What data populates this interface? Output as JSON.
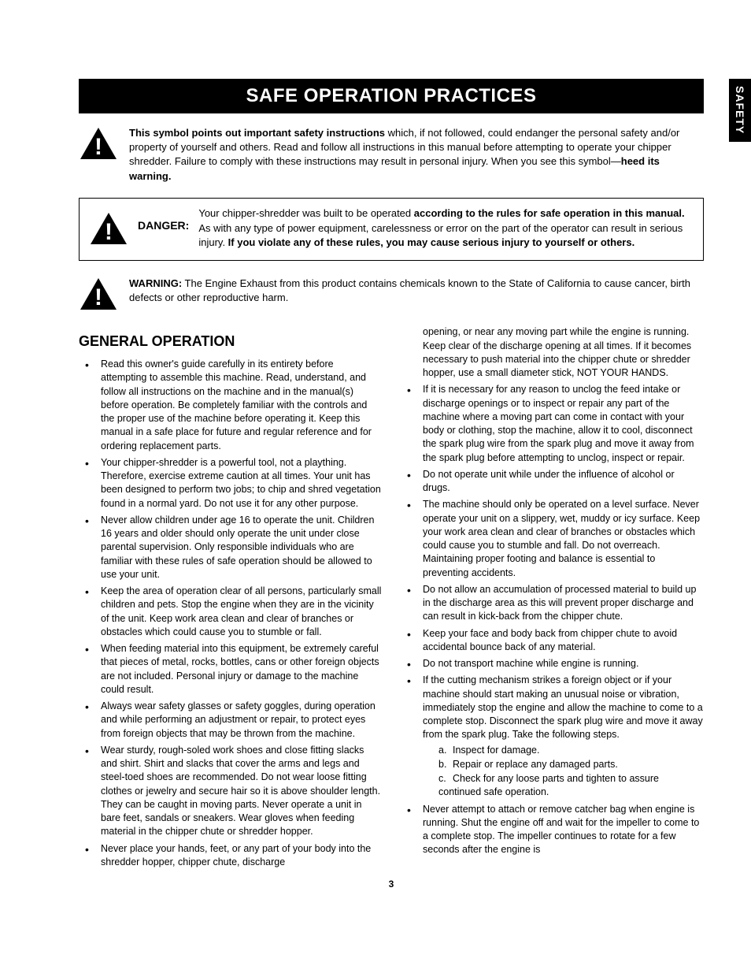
{
  "side_tab": "SAFETY",
  "title": "SAFE OPERATION PRACTICES",
  "intro": {
    "bold_lead": "This symbol points out important safety instructions",
    "rest": " which, if not followed, could endanger the personal safety and/or property of yourself and others. Read and follow all instructions in this manual before attempting to operate your chipper shredder. Failure to comply with these instructions may result in personal injury. When you see this symbol—",
    "heed": "heed its warning."
  },
  "danger": {
    "label": "DANGER:",
    "p1": "Your chipper-shredder was built to be operated ",
    "b1": "according to the rules for safe operation in this manual.",
    "p2": " As with any type of power equipment, carelessness or error on the part of the operator can result in serious injury. ",
    "b2": "If you violate any of these rules, you may cause serious injury to yourself or others."
  },
  "warning": {
    "label": "WARNING:",
    "text": " The Engine Exhaust from this product contains chemicals known to the State of California to cause cancer, birth defects or other reproductive harm."
  },
  "section_heading": "GENERAL OPERATION",
  "left_bullets": [
    "Read this owner's guide carefully in its entirety before attempting to assemble this machine. Read, understand, and follow all instructions on the machine and in the manual(s) before operation. Be completely familiar with the controls and the proper use of the machine before operating it. Keep this manual in a safe place for future and regular reference and for ordering replacement parts.",
    "Your chipper-shredder is a powerful tool, not a plaything. Therefore, exercise extreme caution at all times. Your unit has been designed to perform two jobs; to chip and shred vegetation found in a normal yard. Do not use it for any other purpose.",
    "Never allow children under age 16 to operate the unit. Children 16 years and older should only operate the unit under close parental supervision. Only responsible individuals who are familiar with these rules of safe operation should be allowed to use your unit.",
    "Keep the area of operation clear of all persons, particularly small children and pets. Stop the engine when they are in the vicinity of the unit. Keep work area clean and clear of branches or obstacles which could cause you to stumble or fall.",
    "When feeding material into this equipment, be extremely careful that pieces of metal, rocks, bottles, cans or other foreign objects are not included. Personal injury or damage to the machine could result.",
    "Always wear safety glasses or safety goggles, during operation and while performing an adjustment or repair, to protect eyes from foreign objects that may be thrown from the machine.",
    "Wear sturdy, rough-soled work shoes and close fitting slacks and shirt. Shirt and slacks that cover the arms and legs and steel-toed shoes are recommended. Do not wear loose fitting clothes or jewelry and secure hair so it is above shoulder length. They can be caught in moving parts. Never operate a unit in bare feet, sandals or sneakers. Wear gloves when feeding material in the chipper chute or shredder hopper.",
    "Never place your hands, feet, or any part of your body into the shredder hopper, chipper chute, discharge"
  ],
  "right_continuation": "opening, or near any moving part while the engine is running. Keep clear of the discharge opening at all times. If it becomes necessary to push material into the chipper chute or shredder hopper, use a small diameter stick, NOT YOUR HANDS.",
  "right_bullets": [
    "If it is necessary for any reason to unclog the feed intake or discharge openings or to inspect or repair any part of the machine where a moving part can come in contact with your body or clothing, stop the machine, allow it to cool, disconnect the spark plug wire from the spark plug and move it away from the spark plug before attempting to unclog, inspect or repair.",
    "Do not operate unit while under the influence of alcohol or drugs.",
    "The machine should only be operated on a level surface. Never operate your unit on a slippery, wet, muddy or icy surface. Keep your work area clean and clear of branches or obstacles which could cause you to stumble and fall. Do not overreach. Maintaining proper footing and balance is essential to preventing accidents.",
    "Do not allow an accumulation of processed material to build up in the discharge area as this will prevent proper discharge and can result in kick-back from the chipper chute.",
    "Keep your face and body back from chipper chute to avoid accidental bounce back of any material.",
    "Do not transport machine while engine is running."
  ],
  "complex_bullet": {
    "text": "If the cutting mechanism strikes a foreign object or if your machine should start making an unusual noise or vibration, immediately stop the engine and allow the machine to come to a complete stop. Disconnect the spark plug wire and move it away from the spark plug. Take the following steps.",
    "subs": [
      {
        "label": "a.",
        "text": "Inspect for damage."
      },
      {
        "label": "b.",
        "text": "Repair or replace any damaged parts."
      },
      {
        "label": "c.",
        "text": "Check for any loose parts and tighten to assure continued safe operation."
      }
    ]
  },
  "right_bullets_after": [
    "Never attempt to attach or remove catcher bag when engine is running. Shut the engine off and wait for the impeller to come to a complete stop. The impeller continues to rotate for a few seconds after the engine is"
  ],
  "page_number": "3"
}
